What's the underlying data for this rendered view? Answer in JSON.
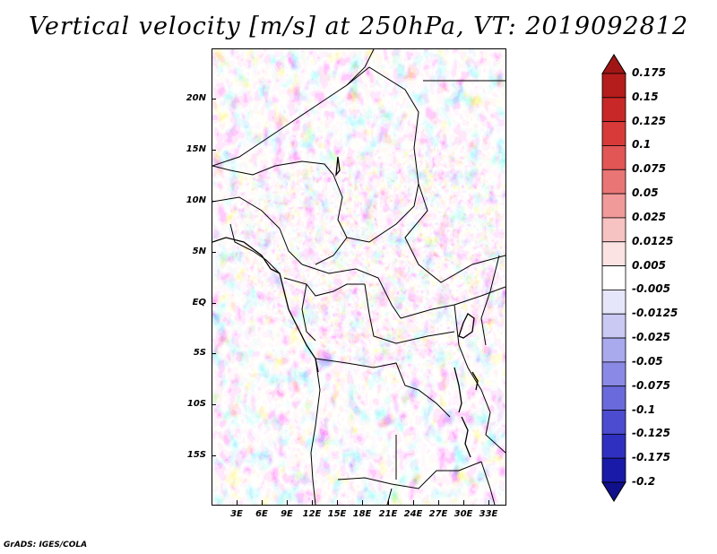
{
  "title": "Vertical velocity [m/s] at 250hPa, VT: 2019092812",
  "credit": "GrADS: IGES/COLA",
  "lat_labels": [
    "20N",
    "15N",
    "10N",
    "5N",
    "EQ",
    "5S",
    "10S",
    "15S"
  ],
  "lon_labels": [
    "3E",
    "6E",
    "9E",
    "12E",
    "15E",
    "18E",
    "21E",
    "24E",
    "27E",
    "30E",
    "33E"
  ],
  "colorbar": {
    "labels": [
      "0.175",
      "0.15",
      "0.125",
      "0.1",
      "0.075",
      "0.05",
      "0.025",
      "0.0125",
      "0.005",
      "-0.005",
      "-0.0125",
      "-0.025",
      "-0.05",
      "-0.075",
      "-0.1",
      "-0.125",
      "-0.175",
      "-0.2"
    ],
    "colors": [
      "#a01616",
      "#b51c1c",
      "#c92828",
      "#d83a3a",
      "#e25656",
      "#ea7575",
      "#f19a9a",
      "#f7c2c2",
      "#fce3e3",
      "#ffffff",
      "#e6e6fb",
      "#c9c9f4",
      "#a9a9ee",
      "#8a8ae6",
      "#6a6adc",
      "#4c4cd0",
      "#3030c0",
      "#1a1aa8",
      "#10108a"
    ]
  },
  "palette": {
    "red": "#d42f2f",
    "blue": "#5555dd",
    "white": "#ffffff"
  }
}
